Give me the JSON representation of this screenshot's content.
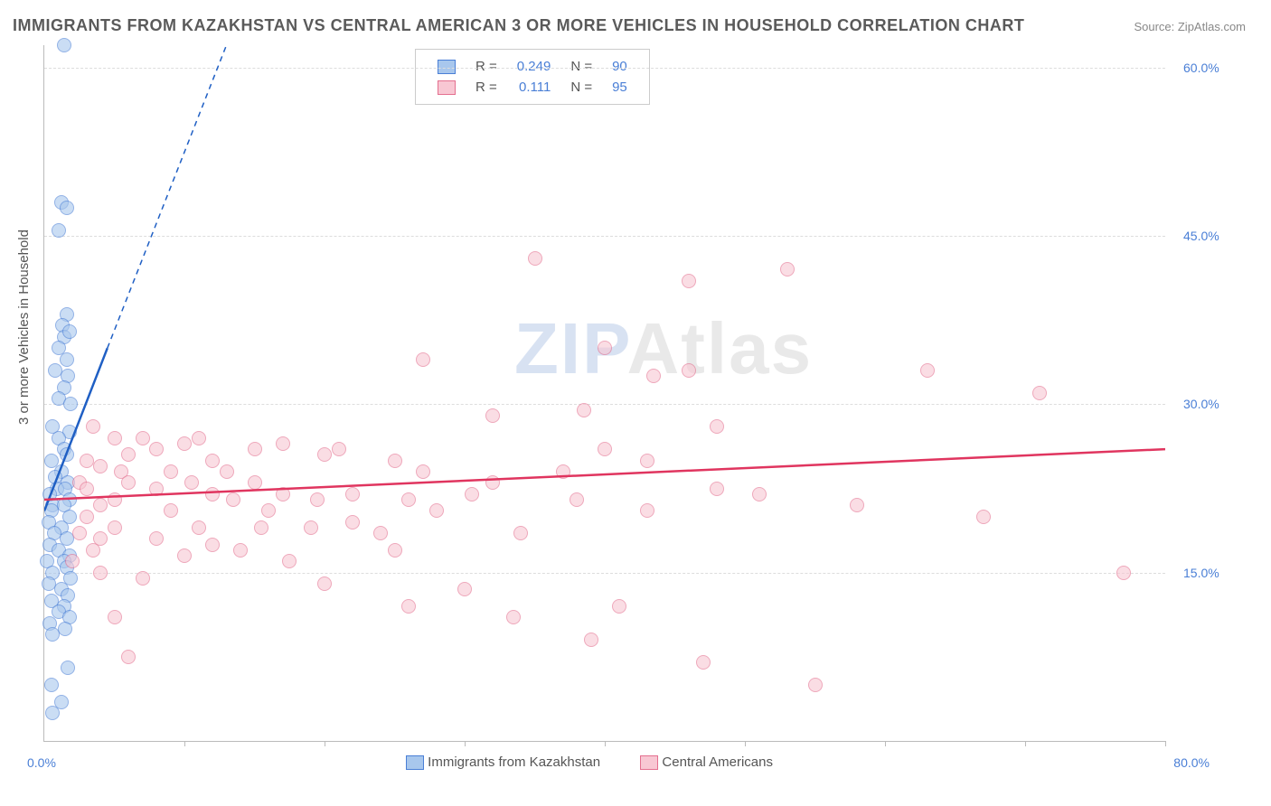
{
  "title": "IMMIGRANTS FROM KAZAKHSTAN VS CENTRAL AMERICAN 3 OR MORE VEHICLES IN HOUSEHOLD CORRELATION CHART",
  "source": "Source: ZipAtlas.com",
  "ylabel": "3 or more Vehicles in Household",
  "watermark": {
    "part1": "ZIP",
    "part2": "Atlas"
  },
  "chart": {
    "type": "scatter-correlation",
    "background_color": "#ffffff",
    "grid_color": "#dddddd",
    "axis_color": "#bbbbbb",
    "label_color": "#4a7fd6",
    "xlim": [
      0,
      80
    ],
    "ylim": [
      0,
      62
    ],
    "xticks": [
      0,
      10,
      20,
      30,
      40,
      50,
      60,
      70,
      80
    ],
    "xtick_labels": {
      "left": "0.0%",
      "right": "80.0%"
    },
    "yticks": [
      15,
      30,
      45,
      60
    ],
    "ytick_labels": [
      "15.0%",
      "30.0%",
      "45.0%",
      "60.0%"
    ],
    "point_radius": 7,
    "series": [
      {
        "id": "kazakhstan",
        "label": "Immigrants from Kazakhstan",
        "R_label": "R =",
        "R_value": "0.249",
        "N_label": "N =",
        "N_value": "90",
        "fill_color": "#a8c7ed",
        "stroke_color": "#4a7fd6",
        "trend_color": "#1f5fc4",
        "trend": {
          "x1": 0,
          "y1": 20.5,
          "x2_solid": 4.5,
          "y2_solid": 35,
          "x2_dashed": 13,
          "y2_dashed": 62
        },
        "points": [
          [
            1.4,
            62
          ],
          [
            1.2,
            48
          ],
          [
            1.6,
            47.5
          ],
          [
            1.0,
            45.5
          ],
          [
            1.6,
            38
          ],
          [
            1.3,
            37
          ],
          [
            1.4,
            36
          ],
          [
            1.8,
            36.5
          ],
          [
            1.0,
            35
          ],
          [
            1.6,
            34
          ],
          [
            0.8,
            33
          ],
          [
            1.7,
            32.5
          ],
          [
            1.4,
            31.5
          ],
          [
            1.0,
            30.5
          ],
          [
            1.9,
            30
          ],
          [
            0.6,
            28
          ],
          [
            1.8,
            27.5
          ],
          [
            1.0,
            27
          ],
          [
            1.4,
            26
          ],
          [
            1.6,
            25.5
          ],
          [
            0.5,
            25
          ],
          [
            1.2,
            24
          ],
          [
            0.8,
            23.5
          ],
          [
            1.7,
            23
          ],
          [
            0.9,
            22.5
          ],
          [
            1.5,
            22.5
          ],
          [
            0.4,
            22
          ],
          [
            1.8,
            21.5
          ],
          [
            0.6,
            21
          ],
          [
            1.4,
            21
          ],
          [
            0.5,
            20.5
          ],
          [
            1.8,
            20
          ],
          [
            0.3,
            19.5
          ],
          [
            1.2,
            19
          ],
          [
            0.7,
            18.5
          ],
          [
            1.6,
            18
          ],
          [
            0.4,
            17.5
          ],
          [
            1.0,
            17
          ],
          [
            1.8,
            16.5
          ],
          [
            1.4,
            16
          ],
          [
            0.2,
            16
          ],
          [
            1.6,
            15.5
          ],
          [
            0.6,
            15
          ],
          [
            1.9,
            14.5
          ],
          [
            0.3,
            14
          ],
          [
            1.2,
            13.5
          ],
          [
            1.7,
            13
          ],
          [
            0.5,
            12.5
          ],
          [
            1.4,
            12
          ],
          [
            1.0,
            11.5
          ],
          [
            1.8,
            11
          ],
          [
            0.4,
            10.5
          ],
          [
            1.5,
            10
          ],
          [
            0.6,
            9.5
          ],
          [
            1.7,
            6.5
          ],
          [
            0.5,
            5
          ],
          [
            1.2,
            3.5
          ],
          [
            0.6,
            2.5
          ]
        ]
      },
      {
        "id": "central_americans",
        "label": "Central Americans",
        "R_label": "R =",
        "R_value": "0.111",
        "N_label": "N =",
        "N_value": "95",
        "fill_color": "#f8c7d3",
        "stroke_color": "#e46f8f",
        "trend_color": "#e0355f",
        "trend": {
          "x1": 0,
          "y1": 21.5,
          "x2_solid": 80,
          "y2_solid": 26
        },
        "points": [
          [
            35,
            43
          ],
          [
            46,
            41
          ],
          [
            53,
            42
          ],
          [
            40,
            35
          ],
          [
            27,
            34
          ],
          [
            63,
            33
          ],
          [
            46,
            33
          ],
          [
            43.5,
            32.5
          ],
          [
            71,
            31
          ],
          [
            38.5,
            29.5
          ],
          [
            32,
            29
          ],
          [
            3.5,
            28
          ],
          [
            48,
            28
          ],
          [
            5,
            27
          ],
          [
            7,
            27
          ],
          [
            11,
            27
          ],
          [
            10,
            26.5
          ],
          [
            17,
            26.5
          ],
          [
            8,
            26
          ],
          [
            15,
            26
          ],
          [
            21,
            26
          ],
          [
            40,
            26
          ],
          [
            6,
            25.5
          ],
          [
            20,
            25.5
          ],
          [
            3,
            25
          ],
          [
            12,
            25
          ],
          [
            25,
            25
          ],
          [
            43,
            25
          ],
          [
            4,
            24.5
          ],
          [
            5.5,
            24
          ],
          [
            9,
            24
          ],
          [
            13,
            24
          ],
          [
            27,
            24
          ],
          [
            37,
            24
          ],
          [
            2.5,
            23
          ],
          [
            6,
            23
          ],
          [
            10.5,
            23
          ],
          [
            15,
            23
          ],
          [
            32,
            23
          ],
          [
            48,
            22.5
          ],
          [
            3,
            22.5
          ],
          [
            8,
            22.5
          ],
          [
            12,
            22
          ],
          [
            17,
            22
          ],
          [
            22,
            22
          ],
          [
            30.5,
            22
          ],
          [
            51,
            22
          ],
          [
            5,
            21.5
          ],
          [
            13.5,
            21.5
          ],
          [
            19.5,
            21.5
          ],
          [
            26,
            21.5
          ],
          [
            38,
            21.5
          ],
          [
            58,
            21
          ],
          [
            4,
            21
          ],
          [
            9,
            20.5
          ],
          [
            16,
            20.5
          ],
          [
            28,
            20.5
          ],
          [
            43,
            20.5
          ],
          [
            67,
            20
          ],
          [
            3,
            20
          ],
          [
            22,
            19.5
          ],
          [
            5,
            19
          ],
          [
            11,
            19
          ],
          [
            15.5,
            19
          ],
          [
            19,
            19
          ],
          [
            2.5,
            18.5
          ],
          [
            24,
            18.5
          ],
          [
            34,
            18.5
          ],
          [
            4,
            18
          ],
          [
            8,
            18
          ],
          [
            3.5,
            17
          ],
          [
            10,
            16.5
          ],
          [
            12,
            17.5
          ],
          [
            14,
            17
          ],
          [
            17.5,
            16
          ],
          [
            25,
            17
          ],
          [
            2,
            16
          ],
          [
            77,
            15
          ],
          [
            4,
            15
          ],
          [
            7,
            14.5
          ],
          [
            20,
            14
          ],
          [
            30,
            13.5
          ],
          [
            26,
            12
          ],
          [
            41,
            12
          ],
          [
            5,
            11
          ],
          [
            33.5,
            11
          ],
          [
            39,
            9
          ],
          [
            47,
            7
          ],
          [
            6,
            7.5
          ],
          [
            55,
            5
          ]
        ]
      }
    ]
  }
}
